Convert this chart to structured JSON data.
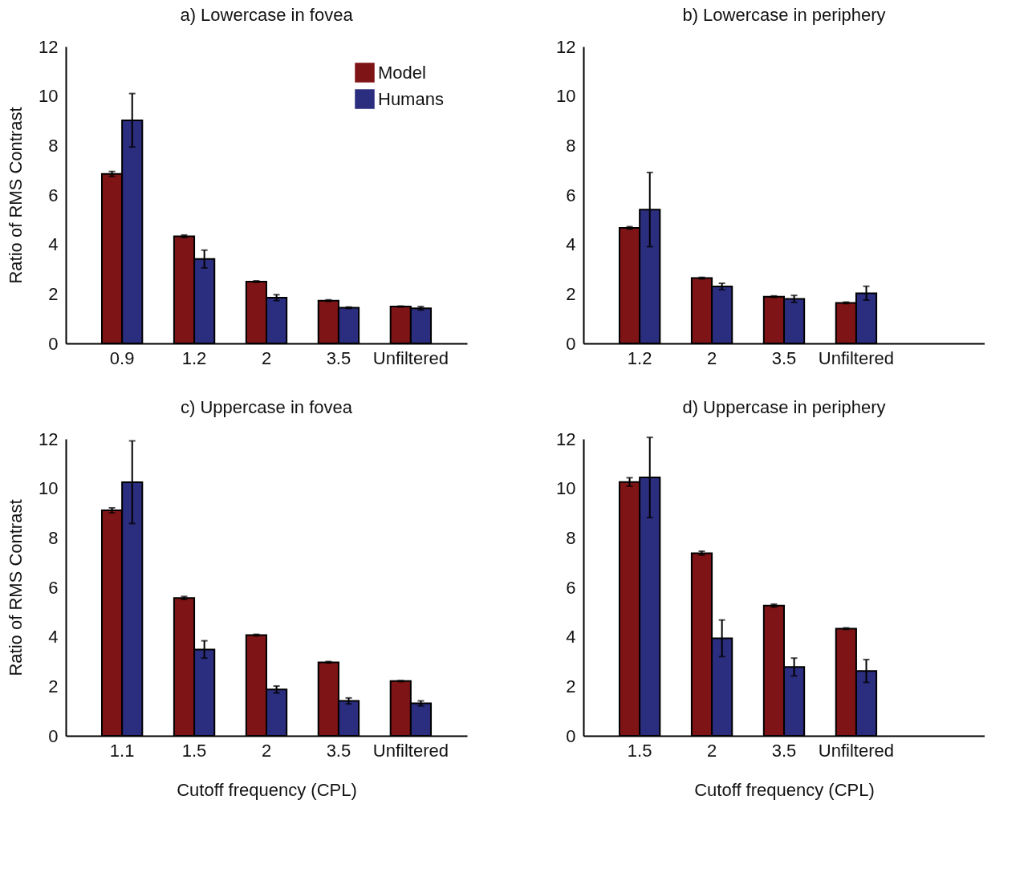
{
  "chart_data": [
    {
      "type": "bar",
      "title": "a) Lowercase in fovea",
      "ylabel": "Ratio of RMS Contrast",
      "categories": [
        "0.9",
        "1.2",
        "2",
        "3.5",
        "Unfiltered"
      ],
      "ylim": [
        0,
        12
      ],
      "yticks": [
        0,
        2,
        4,
        6,
        8,
        10,
        12
      ],
      "legend": "top right",
      "series": [
        {
          "name": "Model",
          "color": "#7f1416",
          "values": [
            6.85,
            4.33,
            2.5,
            1.73,
            1.49
          ],
          "errors": [
            0.1,
            0.05,
            0.03,
            0.03,
            0.02
          ]
        },
        {
          "name": "Humans",
          "color": "#2b2d7f",
          "values": [
            9.02,
            3.41,
            1.85,
            1.44,
            1.42
          ],
          "errors": [
            1.08,
            0.36,
            0.12,
            0.03,
            0.07
          ]
        }
      ]
    },
    {
      "type": "bar",
      "title": "b) Lowercase in periphery",
      "categories": [
        "1.2",
        "2",
        "3.5",
        "Unfiltered"
      ],
      "ylim": [
        0,
        12
      ],
      "yticks": [
        0,
        2,
        4,
        6,
        8,
        10,
        12
      ],
      "series": [
        {
          "color": "#7f1416",
          "values": [
            4.67,
            2.64,
            1.89,
            1.64
          ],
          "errors": [
            0.05,
            0.03,
            0.03,
            0.03
          ]
        },
        {
          "color": "#2b2d7f",
          "values": [
            5.41,
            2.3,
            1.8,
            2.03
          ],
          "errors": [
            1.5,
            0.13,
            0.14,
            0.28
          ]
        }
      ]
    },
    {
      "type": "bar",
      "title": "c) Uppercase in fovea",
      "ylabel": "Ratio of RMS Contrast",
      "xlabel": "Cutoff frequency (CPL)",
      "categories": [
        "1.1",
        "1.5",
        "2",
        "3.5",
        "Unfiltered"
      ],
      "ylim": [
        0,
        12
      ],
      "yticks": [
        0,
        2,
        4,
        6,
        8,
        10,
        12
      ],
      "series": [
        {
          "color": "#7f1416",
          "values": [
            9.11,
            5.57,
            4.07,
            2.97,
            2.21
          ],
          "errors": [
            0.1,
            0.06,
            0.03,
            0.03,
            0.02
          ]
        },
        {
          "color": "#2b2d7f",
          "values": [
            10.25,
            3.49,
            1.87,
            1.41,
            1.31
          ],
          "errors": [
            1.67,
            0.35,
            0.14,
            0.12,
            0.1
          ]
        }
      ]
    },
    {
      "type": "bar",
      "title": "d) Uppercase in periphery",
      "xlabel": "Cutoff frequency (CPL)",
      "categories": [
        "1.5",
        "2",
        "3.5",
        "Unfiltered"
      ],
      "ylim": [
        0,
        12
      ],
      "yticks": [
        0,
        2,
        4,
        6,
        8,
        10,
        12
      ],
      "series": [
        {
          "color": "#7f1416",
          "values": [
            10.26,
            7.38,
            5.26,
            4.33
          ],
          "errors": [
            0.17,
            0.08,
            0.06,
            0.03
          ]
        },
        {
          "color": "#2b2d7f",
          "values": [
            10.44,
            3.94,
            2.78,
            2.62
          ],
          "errors": [
            1.62,
            0.74,
            0.36,
            0.46
          ]
        }
      ]
    }
  ]
}
